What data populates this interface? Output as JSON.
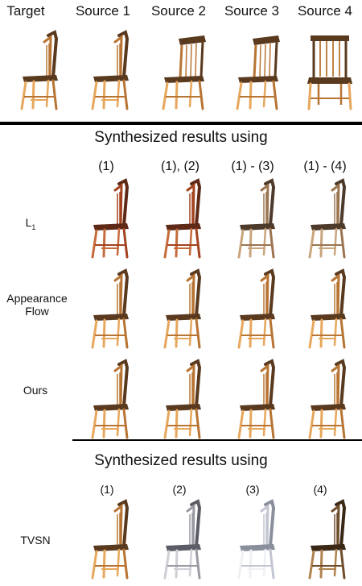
{
  "header_row": {
    "labels": [
      "Target",
      "Source 1",
      "Source 2",
      "Source 3",
      "Source 4"
    ]
  },
  "section1": {
    "title": "Synthesized results using",
    "columns": [
      "(1)",
      "(1), (2)",
      "(1) - (3)",
      "(1) - (4)"
    ],
    "rows": [
      {
        "label_main": "L",
        "label_sub": "1"
      },
      {
        "label_line1": "Appearance",
        "label_line2": "Flow"
      },
      {
        "label": "Ours"
      }
    ]
  },
  "section2": {
    "title": "Synthesized results using",
    "columns": [
      "(1)",
      "(2)",
      "(3)",
      "(4)"
    ],
    "row_label": "TVSN"
  },
  "colors": {
    "divider": "#000000",
    "wood_light": "#e7a75c",
    "wood_mid": "#b87433",
    "wood_dark": "#5a3a1f",
    "gray_wood": "#9a9aa2"
  }
}
